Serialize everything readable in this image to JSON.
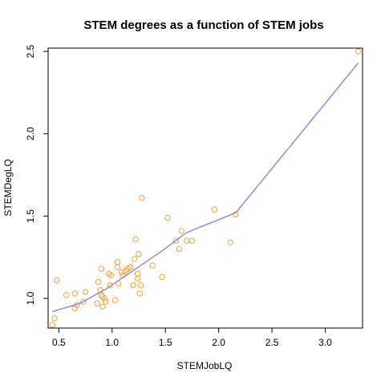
{
  "chart_data": {
    "type": "scatter",
    "title": "STEM degrees as a function of STEM jobs",
    "xlabel": "STEMJobLQ",
    "ylabel": "STEMDegLQ",
    "xlim": [
      0.4,
      3.35
    ],
    "ylim": [
      0.82,
      2.52
    ],
    "x_ticks": [
      "0.5",
      "1.0",
      "1.5",
      "2.0",
      "2.5",
      "3.0"
    ],
    "y_ticks": [
      "1.0",
      "1.5",
      "2.0",
      "2.5"
    ],
    "grid": false,
    "series": [
      {
        "type": "scatter",
        "color": "#F5A030",
        "points": [
          [
            0.44,
            0.84
          ],
          [
            0.46,
            0.88
          ],
          [
            0.48,
            1.11
          ],
          [
            0.57,
            1.02
          ],
          [
            0.65,
            1.03
          ],
          [
            0.65,
            0.94
          ],
          [
            0.67,
            0.96
          ],
          [
            0.73,
            0.98
          ],
          [
            0.75,
            1.04
          ],
          [
            0.86,
            0.97
          ],
          [
            0.87,
            1.1
          ],
          [
            0.89,
            1.05
          ],
          [
            0.9,
            1.02
          ],
          [
            0.9,
            1.18
          ],
          [
            0.91,
            0.95
          ],
          [
            0.91,
            1.01
          ],
          [
            0.93,
            1.0
          ],
          [
            0.94,
            0.98
          ],
          [
            0.97,
            1.15
          ],
          [
            0.98,
            1.08
          ],
          [
            0.99,
            1.14
          ],
          [
            1.03,
            0.99
          ],
          [
            1.05,
            1.19
          ],
          [
            1.05,
            1.22
          ],
          [
            1.06,
            1.09
          ],
          [
            1.09,
            1.16
          ],
          [
            1.1,
            1.14
          ],
          [
            1.13,
            1.17
          ],
          [
            1.15,
            1.18
          ],
          [
            1.17,
            1.19
          ],
          [
            1.2,
            1.08
          ],
          [
            1.21,
            1.24
          ],
          [
            1.22,
            1.36
          ],
          [
            1.24,
            1.12
          ],
          [
            1.24,
            1.15
          ],
          [
            1.25,
            1.27
          ],
          [
            1.26,
            1.03
          ],
          [
            1.27,
            1.08
          ],
          [
            1.28,
            1.61
          ],
          [
            1.38,
            1.2
          ],
          [
            1.47,
            1.13
          ],
          [
            1.52,
            1.49
          ],
          [
            1.6,
            1.35
          ],
          [
            1.63,
            1.3
          ],
          [
            1.65,
            1.41
          ],
          [
            1.7,
            1.35
          ],
          [
            1.75,
            1.35
          ],
          [
            1.96,
            1.54
          ],
          [
            2.11,
            1.34
          ],
          [
            2.16,
            1.51
          ],
          [
            3.31,
            2.5
          ]
        ]
      },
      {
        "type": "line",
        "color": "#9B90D0",
        "x": [
          0.44,
          0.7,
          0.95,
          1.2,
          1.45,
          1.7,
          2.16,
          3.31
        ],
        "y": [
          0.92,
          0.97,
          1.06,
          1.17,
          1.28,
          1.4,
          1.52,
          2.43
        ]
      }
    ]
  }
}
